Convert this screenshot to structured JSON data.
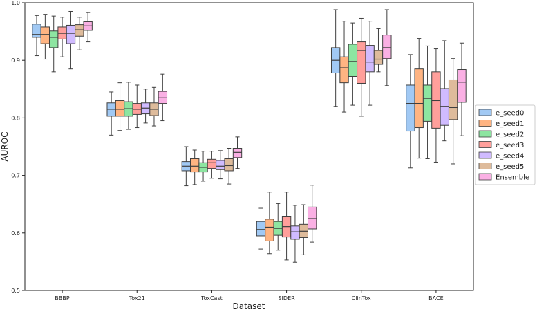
{
  "chart_data": {
    "type": "boxplot",
    "xlabel": "Dataset",
    "ylabel": "AUROC",
    "ylim": [
      0.5,
      1.0
    ],
    "yticks": [
      "0.5",
      "0.6",
      "0.7",
      "0.8",
      "0.9",
      "1.0"
    ],
    "categories": [
      "BBBP",
      "Tox21",
      "ToxCast",
      "SIDER",
      "ClinTox",
      "BACE"
    ],
    "legend_position": "right",
    "series": [
      {
        "name": "e_seed0",
        "color": "#a1c9f4",
        "boxes": [
          {
            "whislo": 0.908,
            "q1": 0.94,
            "med": 0.945,
            "q3": 0.963,
            "whishi": 0.978
          },
          {
            "whislo": 0.77,
            "q1": 0.803,
            "med": 0.815,
            "q3": 0.826,
            "whishi": 0.845
          },
          {
            "whislo": 0.682,
            "q1": 0.708,
            "med": 0.716,
            "q3": 0.724,
            "whishi": 0.75
          },
          {
            "whislo": 0.572,
            "q1": 0.595,
            "med": 0.606,
            "q3": 0.62,
            "whishi": 0.643
          },
          {
            "whislo": 0.82,
            "q1": 0.878,
            "med": 0.9,
            "q3": 0.922,
            "whishi": 0.988
          },
          {
            "whislo": 0.713,
            "q1": 0.777,
            "med": 0.825,
            "q3": 0.857,
            "whishi": 0.91
          }
        ]
      },
      {
        "name": "e_seed1",
        "color": "#ffb482",
        "boxes": [
          {
            "whislo": 0.902,
            "q1": 0.929,
            "med": 0.945,
            "q3": 0.958,
            "whishi": 0.98
          },
          {
            "whislo": 0.778,
            "q1": 0.803,
            "med": 0.815,
            "q3": 0.83,
            "whishi": 0.861
          },
          {
            "whislo": 0.684,
            "q1": 0.706,
            "med": 0.716,
            "q3": 0.729,
            "whishi": 0.744
          },
          {
            "whislo": 0.564,
            "q1": 0.586,
            "med": 0.61,
            "q3": 0.624,
            "whishi": 0.671
          },
          {
            "whislo": 0.81,
            "q1": 0.861,
            "med": 0.887,
            "q3": 0.906,
            "whishi": 0.968
          },
          {
            "whislo": 0.73,
            "q1": 0.783,
            "med": 0.825,
            "q3": 0.885,
            "whishi": 0.938
          }
        ]
      },
      {
        "name": "e_seed2",
        "color": "#8de5a1",
        "boxes": [
          {
            "whislo": 0.88,
            "q1": 0.922,
            "med": 0.94,
            "q3": 0.951,
            "whishi": 0.977
          },
          {
            "whislo": 0.78,
            "q1": 0.803,
            "med": 0.816,
            "q3": 0.828,
            "whishi": 0.862
          },
          {
            "whislo": 0.69,
            "q1": 0.706,
            "med": 0.714,
            "q3": 0.722,
            "whishi": 0.742
          },
          {
            "whislo": 0.57,
            "q1": 0.596,
            "med": 0.608,
            "q3": 0.62,
            "whishi": 0.651
          },
          {
            "whislo": 0.822,
            "q1": 0.872,
            "med": 0.898,
            "q3": 0.928,
            "whishi": 0.965
          },
          {
            "whislo": 0.729,
            "q1": 0.794,
            "med": 0.834,
            "q3": 0.857,
            "whishi": 0.925
          }
        ]
      },
      {
        "name": "e_seed3",
        "color": "#ff9f9b",
        "boxes": [
          {
            "whislo": 0.906,
            "q1": 0.937,
            "med": 0.947,
            "q3": 0.958,
            "whishi": 0.975
          },
          {
            "whislo": 0.783,
            "q1": 0.806,
            "med": 0.815,
            "q3": 0.825,
            "whishi": 0.857
          },
          {
            "whislo": 0.695,
            "q1": 0.712,
            "med": 0.722,
            "q3": 0.728,
            "whishi": 0.742
          },
          {
            "whislo": 0.553,
            "q1": 0.593,
            "med": 0.611,
            "q3": 0.628,
            "whishi": 0.671
          },
          {
            "whislo": 0.803,
            "q1": 0.86,
            "med": 0.917,
            "q3": 0.932,
            "whishi": 0.973
          },
          {
            "whislo": 0.723,
            "q1": 0.782,
            "med": 0.83,
            "q3": 0.88,
            "whishi": 0.92
          }
        ]
      },
      {
        "name": "e_seed4",
        "color": "#d0bbff",
        "boxes": [
          {
            "whislo": 0.885,
            "q1": 0.929,
            "med": 0.947,
            "q3": 0.961,
            "whishi": 0.985
          },
          {
            "whislo": 0.791,
            "q1": 0.807,
            "med": 0.817,
            "q3": 0.826,
            "whishi": 0.85
          },
          {
            "whislo": 0.694,
            "q1": 0.71,
            "med": 0.716,
            "q3": 0.726,
            "whishi": 0.743
          },
          {
            "whislo": 0.549,
            "q1": 0.589,
            "med": 0.602,
            "q3": 0.612,
            "whishi": 0.648
          },
          {
            "whislo": 0.822,
            "q1": 0.88,
            "med": 0.897,
            "q3": 0.926,
            "whishi": 0.968
          },
          {
            "whislo": 0.76,
            "q1": 0.787,
            "med": 0.82,
            "q3": 0.851,
            "whishi": 0.934
          }
        ]
      },
      {
        "name": "e_seed5",
        "color": "#debb9b",
        "boxes": [
          {
            "whislo": 0.918,
            "q1": 0.942,
            "med": 0.953,
            "q3": 0.962,
            "whishi": 0.975
          },
          {
            "whislo": 0.786,
            "q1": 0.804,
            "med": 0.815,
            "q3": 0.826,
            "whishi": 0.853
          },
          {
            "whislo": 0.685,
            "q1": 0.708,
            "med": 0.717,
            "q3": 0.729,
            "whishi": 0.747
          },
          {
            "whislo": 0.562,
            "q1": 0.592,
            "med": 0.603,
            "q3": 0.615,
            "whishi": 0.649
          },
          {
            "whislo": 0.88,
            "q1": 0.893,
            "med": 0.902,
            "q3": 0.917,
            "whishi": 0.955
          },
          {
            "whislo": 0.72,
            "q1": 0.797,
            "med": 0.818,
            "q3": 0.866,
            "whishi": 0.903
          }
        ]
      },
      {
        "name": "Ensemble",
        "color": "#fab0e4",
        "boxes": [
          {
            "whislo": 0.932,
            "q1": 0.952,
            "med": 0.96,
            "q3": 0.967,
            "whishi": 0.983
          },
          {
            "whislo": 0.795,
            "q1": 0.825,
            "med": 0.835,
            "q3": 0.846,
            "whishi": 0.876
          },
          {
            "whislo": 0.712,
            "q1": 0.731,
            "med": 0.74,
            "q3": 0.747,
            "whishi": 0.767
          },
          {
            "whislo": 0.584,
            "q1": 0.607,
            "med": 0.625,
            "q3": 0.645,
            "whishi": 0.683
          },
          {
            "whislo": 0.856,
            "q1": 0.903,
            "med": 0.922,
            "q3": 0.944,
            "whishi": 0.988
          },
          {
            "whislo": 0.769,
            "q1": 0.827,
            "med": 0.862,
            "q3": 0.884,
            "whishi": 0.93
          }
        ]
      }
    ]
  }
}
